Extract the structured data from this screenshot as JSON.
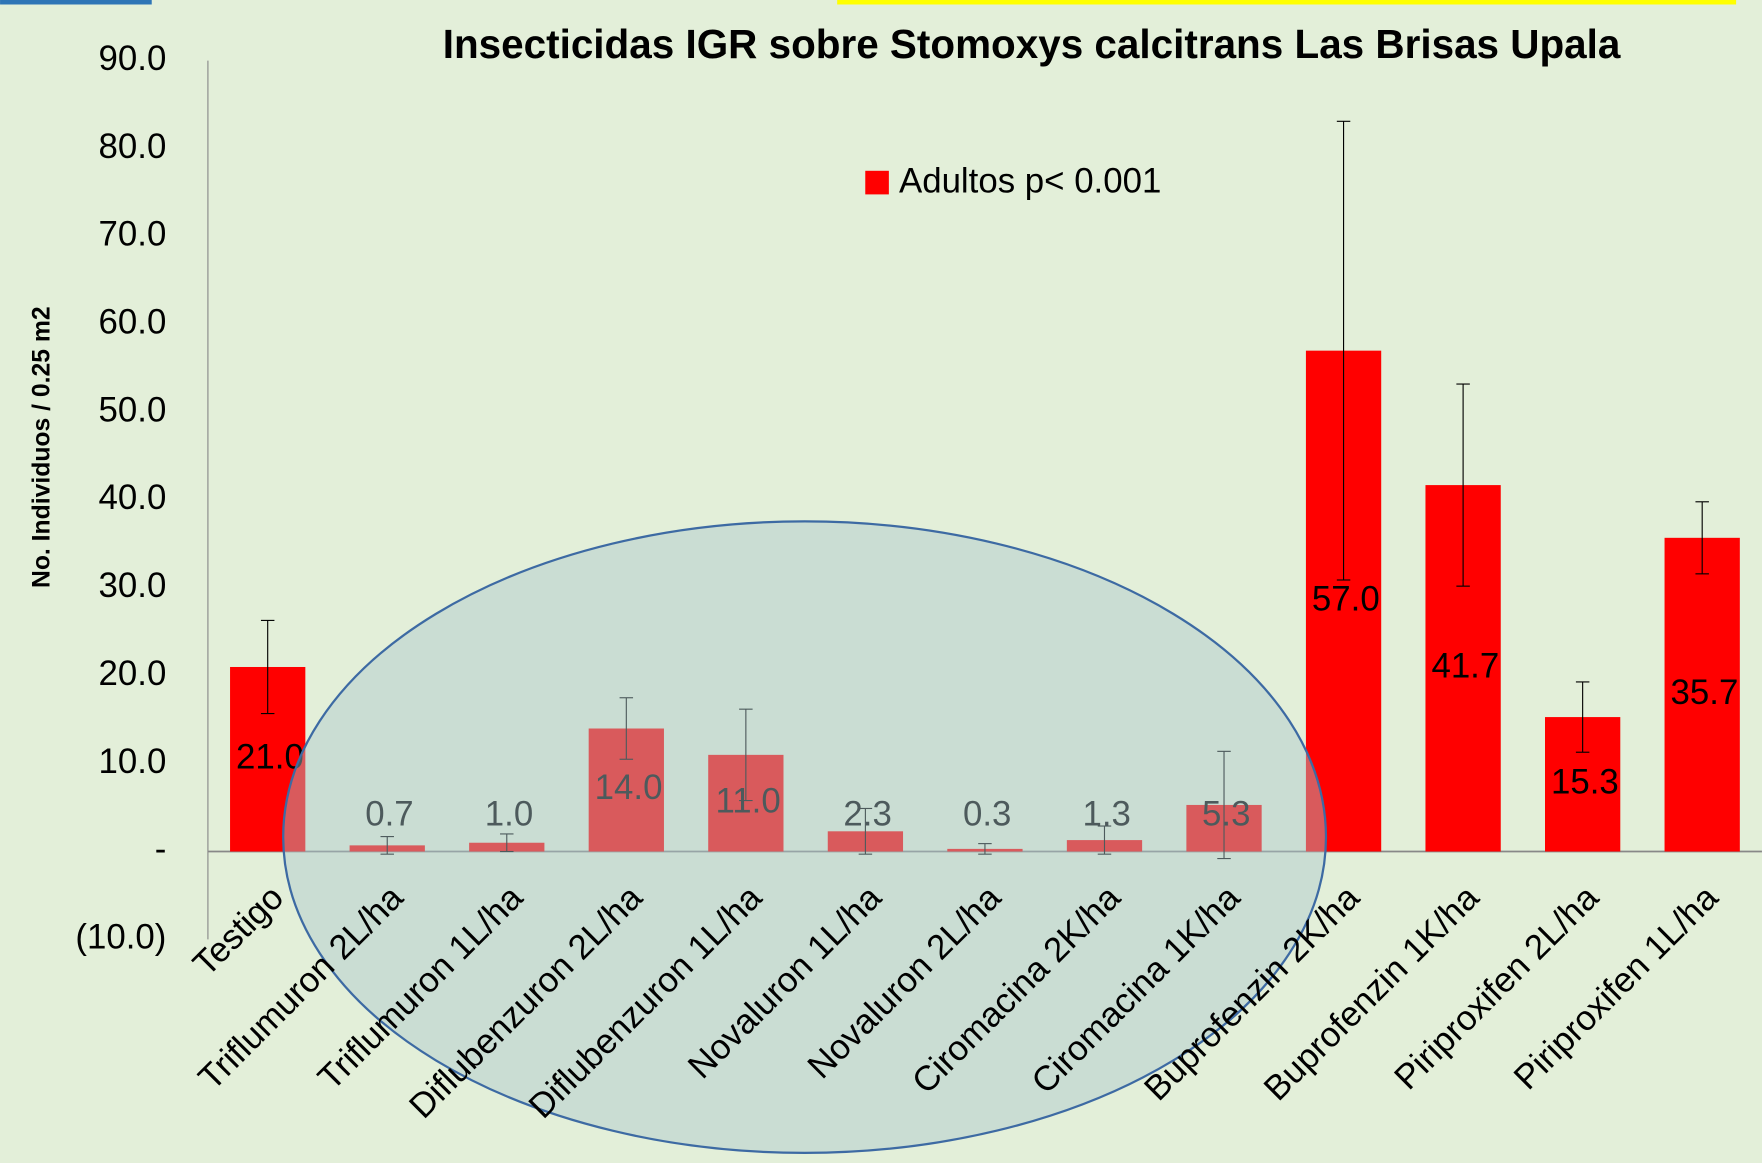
{
  "chart_data": {
    "type": "bar",
    "title": "Insecticidas  IGR sobre Stomoxys calcitrans Las Brisas Upala",
    "y_label": "No. Individuos / 0.25 m2",
    "categories": [
      "Testigo",
      "Triflumuron 2L/ha",
      "Triflumuron 1L/ha",
      "Diflubenzuron 2L/ha",
      "Diflubenzuron 1L/ha",
      "Novaluron 1L/ha",
      "Novaluron 2L/ha",
      "Ciromacina 2K/ha",
      "Ciromacina 1K/ha",
      "Buprofenzin 2K/ha",
      "Buprofenzin 1K/ha",
      "Piriproxifen 2L/ha",
      "Piriproxifen 1L/ha"
    ],
    "series": [
      {
        "name": "Adultos p< 0.001",
        "color": "#ff0000",
        "values": [
          21.0,
          0.7,
          1.0,
          14.0,
          11.0,
          2.3,
          0.3,
          1.3,
          5.3,
          57.0,
          41.7,
          15.3,
          35.7
        ],
        "value_labels": [
          "21.0",
          "0.7",
          "1.0",
          "14.0",
          "11.0",
          "2.3",
          "0.3",
          "1.3",
          "5.3",
          "57.0",
          "41.7",
          "15.3",
          "35.7"
        ],
        "errors": [
          5.3,
          1.0,
          1.0,
          3.5,
          5.2,
          2.6,
          0.6,
          1.6,
          6.1,
          26.1,
          11.5,
          4.0,
          4.1
        ]
      }
    ],
    "ylim": [
      -10,
      90
    ],
    "yticks": [
      {
        "value": -10,
        "label": "(10.0)"
      },
      {
        "value": 0,
        "label": "-"
      },
      {
        "value": 10,
        "label": "10.0"
      },
      {
        "value": 20,
        "label": "20.0"
      },
      {
        "value": 30,
        "label": "30.0"
      },
      {
        "value": 40,
        "label": "40.0"
      },
      {
        "value": 50,
        "label": "50.0"
      },
      {
        "value": 60,
        "label": "60.0"
      },
      {
        "value": 70,
        "label": "70.0"
      },
      {
        "value": 80,
        "label": "80.0"
      },
      {
        "value": 90,
        "label": "90.0"
      }
    ]
  }
}
